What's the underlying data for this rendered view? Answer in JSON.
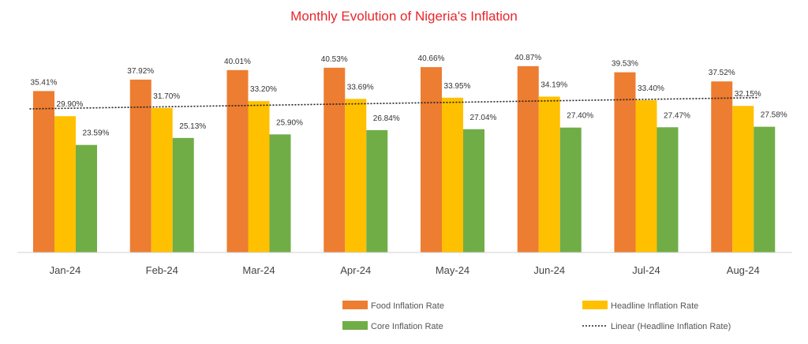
{
  "chart_data": {
    "type": "bar",
    "title": "Monthly Evolution of Nigeria's Inflation",
    "categories": [
      "Jan-24",
      "Feb-24",
      "Mar-24",
      "Apr-24",
      "May-24",
      "Jun-24",
      "Jul-24",
      "Aug-24"
    ],
    "series": [
      {
        "name": "Food Inflation Rate",
        "color": "#ed7d31",
        "values": [
          35.41,
          37.92,
          40.01,
          40.53,
          40.66,
          40.87,
          39.53,
          37.52
        ],
        "labels": [
          "35.41%",
          "37.92%",
          "40.01%",
          "40.53%",
          "40.66%",
          "40.87%",
          "39.53%",
          "37.52%"
        ]
      },
      {
        "name": "Headline Inflation Rate",
        "color": "#ffc000",
        "values": [
          29.9,
          31.7,
          33.2,
          33.69,
          33.95,
          34.19,
          33.4,
          32.15
        ],
        "labels": [
          "29.90%",
          "31.70%",
          "33.20%",
          "33.69%",
          "33.95%",
          "34.19%",
          "33.40%",
          "32.15%"
        ]
      },
      {
        "name": "Core Inflation Rate",
        "color": "#70ad47",
        "values": [
          23.59,
          25.13,
          25.9,
          26.84,
          27.04,
          27.4,
          27.47,
          27.58
        ],
        "labels": [
          "23.59%",
          "25.13%",
          "25.90%",
          "26.84%",
          "27.04%",
          "27.40%",
          "27.47%",
          "27.58%"
        ]
      }
    ],
    "trendline": {
      "name": "Linear (Headline Inflation Rate)",
      "of_series": "Headline Inflation Rate",
      "style": "dotted",
      "color": "#222222"
    },
    "ylim": [
      0,
      45
    ],
    "grid": false,
    "legend_position": "bottom"
  }
}
